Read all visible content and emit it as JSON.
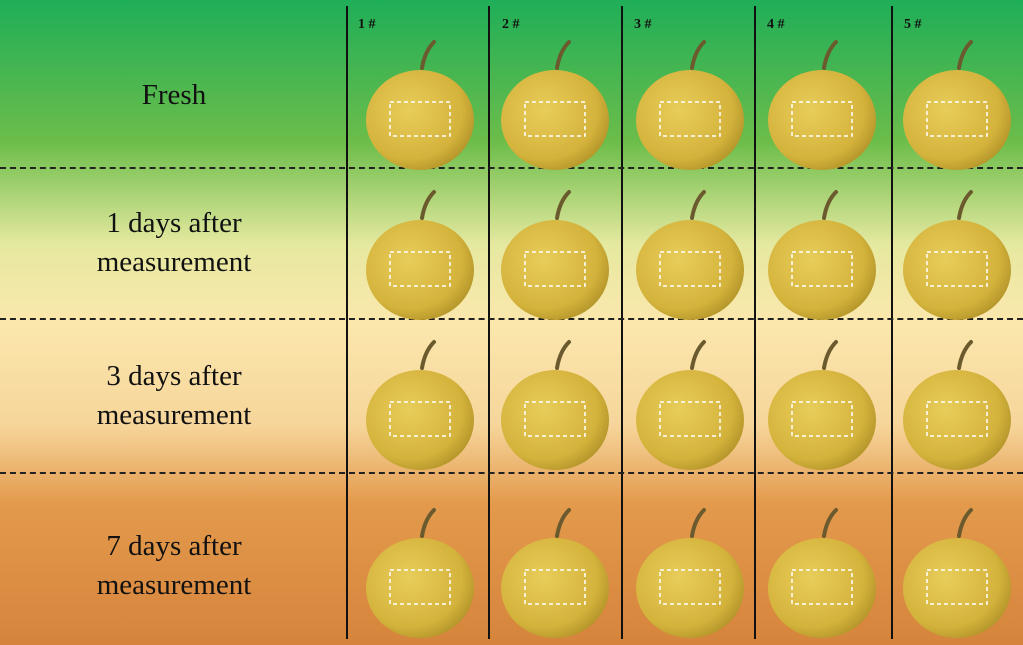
{
  "rows": {
    "r0": {
      "line1": "Fresh",
      "line2": ""
    },
    "r1": {
      "line1": "1 days after",
      "line2": "measurement"
    },
    "r2": {
      "line1": "3 days after",
      "line2": "measurement"
    },
    "r3": {
      "line1": "7 days after",
      "line2": "measurement"
    }
  },
  "columns": [
    "1 #",
    "2 #",
    "3 #",
    "4 #",
    "5 #"
  ],
  "colors": {
    "green": "#2eab55",
    "cream": "#fbe6a8",
    "orange": "#d98a44",
    "pear_fill": "#d4b33c",
    "pear_shadow": "#a98b23",
    "stem": "#6b5a2e"
  }
}
